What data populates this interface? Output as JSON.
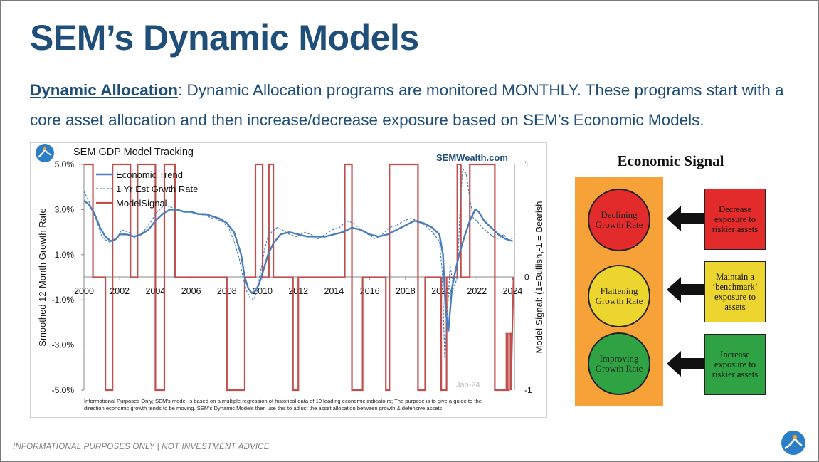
{
  "slide": {
    "title": "SEM’s Dynamic Models",
    "subtitle_lead": "Dynamic Allocation",
    "subtitle_text": ": Dynamic Allocation programs are monitored MONTHLY. These programs start with a core asset allocation and then increase/decrease exposure based on SEM’s Economic Models.",
    "footer": "INFORMATIONAL PURPOSES ONLY | NOT INVESTMENT ADVICE"
  },
  "chart_data": {
    "type": "line",
    "title": "SEM GDP Model Tracking",
    "watermark": "SEMWealth.com",
    "date_stamp": "Jan-24",
    "ylabel": "Smoothed 12-Month Growth Rate",
    "y2label": "Model Signal: (1=Bullish,-1 = Bearish",
    "ylim": [
      -5,
      5
    ],
    "y2lim": [
      -1,
      1
    ],
    "xlim": [
      2000,
      2024.1
    ],
    "y_ticks": [
      "5.0%",
      "3.0%",
      "1.0%",
      "-1.0%",
      "-3.0%",
      "-5.0%"
    ],
    "y2_ticks": [
      "1",
      "0",
      "-1"
    ],
    "x_ticks": [
      "2000",
      "2002",
      "2004",
      "2006",
      "2008",
      "2010",
      "2012",
      "2014",
      "2016",
      "2018",
      "2020",
      "2022",
      "2024"
    ],
    "legend": [
      "Economic Trend",
      "1 Yr Est Grwth Rate",
      "ModelSignal"
    ],
    "colors": {
      "trend": "#4a7ebb",
      "estimate": "#4a7ebb",
      "signal": "#c0504d"
    },
    "note_line1": "Informational Purposes Only; SEM's model is based on a multiple regression of historical data of 10 leading economic indicato      rs; The purpose is to give a guide to the",
    "note_line2": "direction economic growth tends to be moving.   SEM's Dynamic Models then use this to adjust the asset allocation between growth & defensive assets.",
    "series": [
      {
        "name": "Economic Trend",
        "x": [
          2000.0,
          2000.3,
          2000.6,
          2000.9,
          2001.2,
          2001.5,
          2001.8,
          2002.0,
          2002.4,
          2002.8,
          2003.2,
          2003.6,
          2004.0,
          2004.4,
          2004.8,
          2005.2,
          2005.6,
          2006.0,
          2006.4,
          2006.8,
          2007.2,
          2007.6,
          2008.0,
          2008.4,
          2008.8,
          2009.0,
          2009.2,
          2009.4,
          2009.6,
          2009.8,
          2010.0,
          2010.3,
          2010.6,
          2011.0,
          2011.5,
          2012.0,
          2012.5,
          2013.0,
          2013.5,
          2014.0,
          2014.5,
          2015.0,
          2015.5,
          2016.0,
          2016.5,
          2017.0,
          2017.5,
          2018.0,
          2018.5,
          2019.0,
          2019.5,
          2019.9,
          2020.1,
          2020.25,
          2020.4,
          2020.6,
          2020.8,
          2021.0,
          2021.3,
          2021.6,
          2021.9,
          2022.1,
          2022.4,
          2022.8,
          2023.2,
          2023.6,
          2024.0
        ],
        "values": [
          3.4,
          3.2,
          2.8,
          2.2,
          1.8,
          1.6,
          1.7,
          1.9,
          1.9,
          1.8,
          1.9,
          2.1,
          2.5,
          2.8,
          3.0,
          3.0,
          2.9,
          2.9,
          2.8,
          2.8,
          2.7,
          2.6,
          2.4,
          2.0,
          1.0,
          0.0,
          -0.5,
          -0.7,
          -0.6,
          -0.3,
          0.2,
          1.0,
          1.5,
          1.9,
          2.0,
          1.9,
          1.8,
          1.8,
          1.8,
          1.9,
          2.0,
          2.2,
          2.1,
          1.9,
          1.8,
          1.9,
          2.1,
          2.3,
          2.5,
          2.4,
          2.2,
          1.9,
          1.0,
          -1.5,
          -2.4,
          -0.5,
          0.3,
          1.0,
          1.8,
          2.5,
          3.0,
          2.9,
          2.5,
          2.2,
          1.9,
          1.7,
          1.6
        ]
      },
      {
        "name": "1 Yr Est Grwth Rate",
        "x": [
          2000.0,
          2000.2,
          2000.5,
          2000.8,
          2001.0,
          2001.3,
          2001.6,
          2001.9,
          2002.1,
          2002.5,
          2002.9,
          2003.3,
          2003.7,
          2004.1,
          2004.5,
          2004.9,
          2005.3,
          2005.7,
          2006.1,
          2006.5,
          2006.9,
          2007.3,
          2007.7,
          2008.1,
          2008.4,
          2008.7,
          2008.9,
          2009.1,
          2009.3,
          2009.5,
          2009.7,
          2009.9,
          2010.1,
          2010.3,
          2010.5,
          2010.8,
          2011.1,
          2011.5,
          2011.9,
          2012.3,
          2012.7,
          2013.1,
          2013.5,
          2013.9,
          2014.3,
          2014.7,
          2015.1,
          2015.5,
          2015.9,
          2016.3,
          2016.7,
          2017.1,
          2017.5,
          2017.9,
          2018.3,
          2018.7,
          2019.1,
          2019.5,
          2019.9,
          2020.05,
          2020.2,
          2020.35,
          2020.5,
          2020.7,
          2020.9,
          2021.05,
          2021.2,
          2021.4,
          2021.6,
          2021.8,
          2022.0,
          2022.3,
          2022.6,
          2022.9,
          2023.2,
          2023.5,
          2023.8,
          2024.0
        ],
        "values": [
          3.8,
          3.5,
          2.9,
          2.3,
          1.8,
          1.6,
          1.5,
          1.8,
          2.1,
          2.0,
          1.7,
          2.0,
          2.4,
          2.9,
          3.2,
          3.1,
          3.0,
          2.9,
          2.9,
          2.8,
          2.7,
          2.6,
          2.5,
          2.2,
          1.6,
          0.8,
          0.0,
          -0.6,
          -0.9,
          -1.0,
          -0.6,
          0.3,
          1.2,
          1.8,
          2.0,
          2.2,
          2.1,
          1.9,
          1.8,
          2.0,
          1.9,
          1.7,
          1.9,
          2.1,
          2.2,
          2.5,
          2.4,
          2.1,
          1.9,
          1.7,
          1.9,
          2.2,
          2.3,
          2.5,
          2.6,
          2.5,
          2.3,
          2.0,
          1.6,
          0.3,
          -3.6,
          -1.5,
          0.5,
          -0.5,
          0.0,
          3.0,
          4.8,
          4.6,
          3.5,
          2.6,
          2.5,
          2.2,
          2.0,
          1.8,
          1.7,
          1.9,
          1.6,
          1.8
        ]
      },
      {
        "name": "ModelSignal",
        "x": [
          2000.0,
          2000.5,
          2000.5,
          2001.2,
          2001.2,
          2001.6,
          2001.6,
          2002.6,
          2002.6,
          2003.0,
          2003.0,
          2004.0,
          2004.0,
          2004.5,
          2004.5,
          2005.1,
          2005.1,
          2008.0,
          2008.0,
          2009.0,
          2009.0,
          2009.6,
          2009.6,
          2010.0,
          2010.0,
          2010.35,
          2010.35,
          2010.6,
          2010.6,
          2011.7,
          2011.7,
          2012.0,
          2012.0,
          2014.6,
          2014.6,
          2015.0,
          2015.0,
          2015.6,
          2015.6,
          2016.9,
          2016.9,
          2017.1,
          2017.1,
          2018.7,
          2018.7,
          2019.1,
          2019.1,
          2020.0,
          2020.0,
          2020.3,
          2020.3,
          2020.9,
          2020.9,
          2021.1,
          2021.1,
          2021.6,
          2021.6,
          2023.0,
          2023.0,
          2023.65,
          2023.65,
          2023.7,
          2023.7,
          2023.8,
          2023.8,
          2023.9,
          2023.9,
          2024.05
        ],
        "values": [
          1,
          1,
          0,
          0,
          -1,
          -1,
          1,
          1,
          0,
          0,
          1,
          1,
          -1,
          -1,
          1,
          1,
          0,
          0,
          -1,
          -1,
          0,
          0,
          1,
          1,
          0,
          0,
          1,
          1,
          0,
          0,
          -1,
          -1,
          0,
          0,
          1,
          1,
          -1,
          -1,
          0,
          0,
          -1,
          -1,
          1,
          1,
          -1,
          -1,
          0,
          0,
          -1,
          -1,
          0,
          0,
          1,
          1,
          0,
          0,
          1,
          1,
          -1,
          -1,
          -0.5,
          -0.5,
          -1,
          -1,
          -0.5,
          -0.5,
          -1,
          0
        ]
      }
    ]
  },
  "economic_signal": {
    "title": "Economic Signal",
    "lights": [
      {
        "label": "Declining Growth Rate",
        "color": "#e32b2b",
        "action": "Decrease exposure to riskier assets"
      },
      {
        "label": "Flattening Growth Rate",
        "color": "#ecd52e",
        "action": "Maintain a ‘benchmark’ exposure to assets"
      },
      {
        "label": "Improving Growth Rate",
        "color": "#2fa243",
        "action": "Increase exposure to riskier assets"
      }
    ]
  }
}
